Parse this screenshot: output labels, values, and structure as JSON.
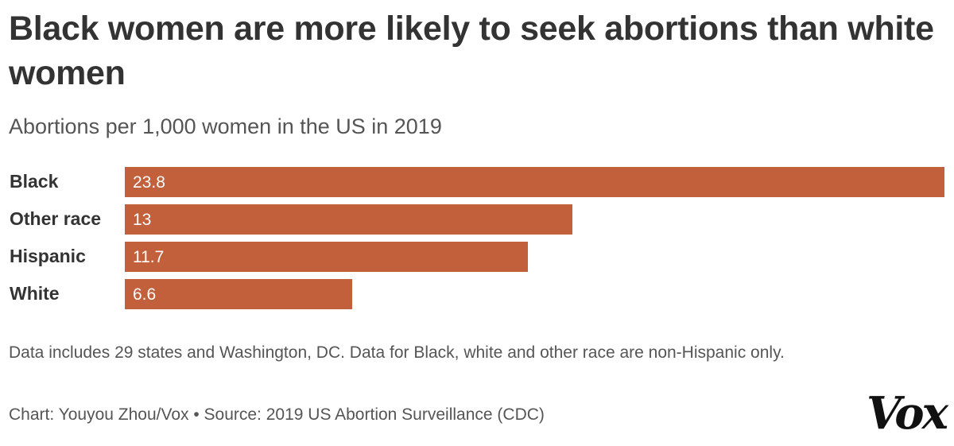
{
  "header": {
    "title": "Black women are more likely to seek abortions than white women",
    "subtitle": "Abortions per 1,000 women in the US in 2019"
  },
  "footer": {
    "note": "Data includes 29 states and Washington, DC. Data for Black, white and other race are non-Hispanic only.",
    "credit": "Chart: Youyou Zhou/Vox • Source: 2019 US Abortion Surveillance (CDC)",
    "logo": "Vox"
  },
  "colors": {
    "bar": "#c2603b",
    "text": "#333333",
    "muted": "#555555"
  },
  "chart_data": {
    "type": "bar",
    "orientation": "horizontal",
    "title": "Black women are more likely to seek abortions than white women",
    "subtitle": "Abortions per 1,000 women in the US in 2019",
    "categories": [
      "Black",
      "Other race",
      "Hispanic",
      "White"
    ],
    "values": [
      23.8,
      13,
      11.7,
      6.6
    ],
    "value_labels": [
      "23.8",
      "13",
      "11.7",
      "6.6"
    ],
    "xlim": [
      0,
      23.8
    ],
    "grid": false,
    "legend": "none"
  }
}
